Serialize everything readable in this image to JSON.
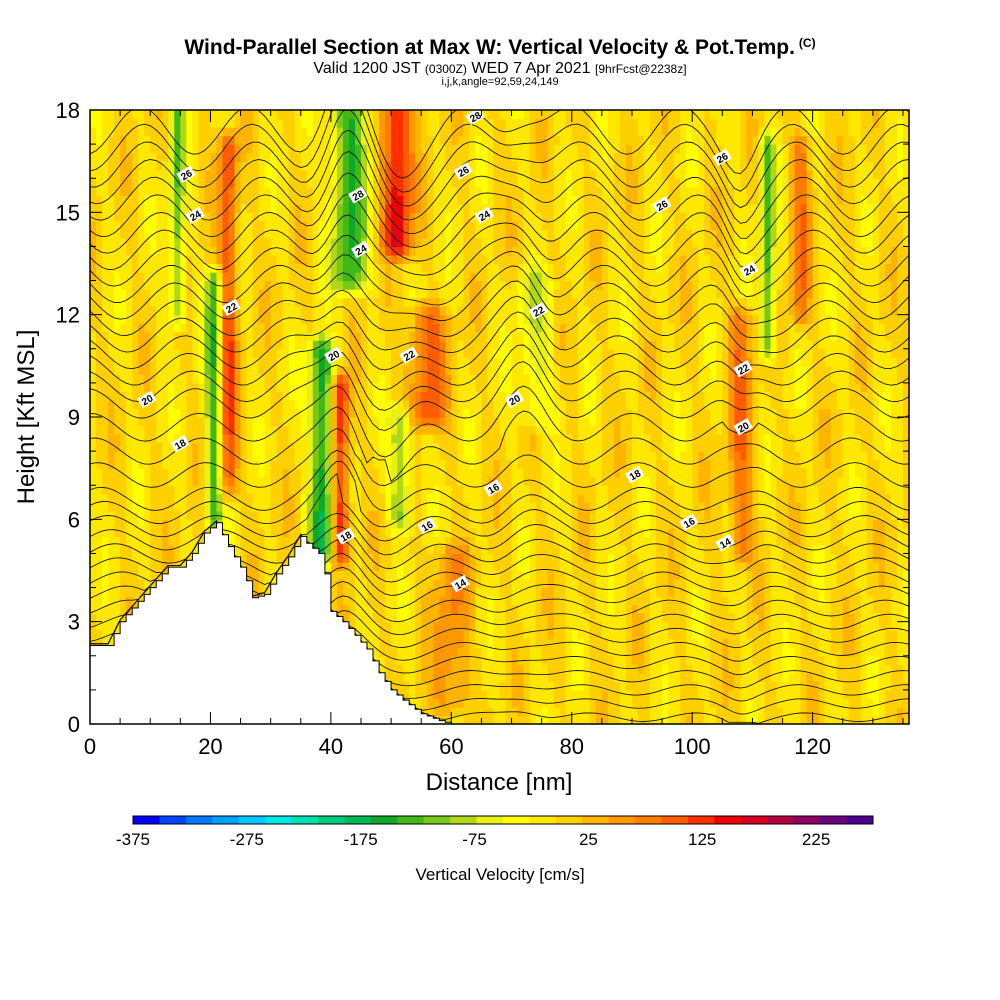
{
  "header": {
    "title": "Wind-Parallel Section at Max W: Vertical Velocity & Pot.Temp.",
    "copyright": "(C)",
    "valid_prefix": "Valid 1200 JST",
    "valid_utc": "(0300Z)",
    "valid_date": "WED 7 Apr 2021",
    "forecast": "[9hrFcst@2238z]",
    "indices": "i,j,k,angle=92,59,24,149"
  },
  "chart_data": {
    "type": "heatmap",
    "xlabel": "Distance [nm]",
    "ylabel": "Height [Kft MSL]",
    "xlim": [
      0,
      136
    ],
    "ylim": [
      0,
      18
    ],
    "xticks": [
      0,
      20,
      40,
      60,
      80,
      100,
      120
    ],
    "yticks": [
      0,
      3,
      6,
      9,
      12,
      15,
      18
    ],
    "colorbar": {
      "label": "Vertical Velocity [cm/s]",
      "tick_labels": [
        "-375",
        "-275",
        "-175",
        "-75",
        "25",
        "125",
        "225"
      ],
      "tick_values": [
        -375,
        -275,
        -175,
        -75,
        25,
        125,
        225
      ],
      "range": [
        -375,
        275
      ],
      "step": 25,
      "colors": [
        "#0000ff",
        "#0044ff",
        "#0077ff",
        "#00a0ff",
        "#00c8ff",
        "#00e8e8",
        "#00e0b0",
        "#00cc80",
        "#00b850",
        "#10a828",
        "#40b818",
        "#78c818",
        "#b0d818",
        "#e8f018",
        "#ffff00",
        "#ffe800",
        "#ffd000",
        "#ffb400",
        "#ff9800",
        "#ff7c00",
        "#ff5c00",
        "#ff3000",
        "#f00000",
        "#d80020",
        "#b40040",
        "#900060",
        "#6a0080",
        "#4a0090"
      ]
    },
    "background_w_cms": 25,
    "w_features": [
      {
        "x": 14.5,
        "y0": 12,
        "y1": 18,
        "w": -120,
        "width": 1.2
      },
      {
        "x": 20.5,
        "y0": 6,
        "y1": 13,
        "w": -140,
        "width": 1.3
      },
      {
        "x": 23,
        "y0": 7,
        "y1": 17,
        "w": 120,
        "width": 1.5
      },
      {
        "x": 38.5,
        "y0": 5,
        "y1": 11,
        "w": -175,
        "width": 2
      },
      {
        "x": 41.5,
        "y0": 5,
        "y1": 10,
        "w": 160,
        "width": 1.5
      },
      {
        "x": 43,
        "y0": 13,
        "y1": 18,
        "w": -150,
        "width": 3
      },
      {
        "x": 51,
        "y0": 14,
        "y1": 18,
        "w": 170,
        "width": 2.5
      },
      {
        "x": 51.5,
        "y0": 6,
        "y1": 9,
        "w": -100,
        "width": 1.8
      },
      {
        "x": 56,
        "y0": 9,
        "y1": 12,
        "w": 110,
        "width": 3
      },
      {
        "x": 74,
        "y0": 9,
        "y1": 13,
        "w": -60,
        "width": 3
      },
      {
        "x": 112.5,
        "y0": 11,
        "y1": 17,
        "w": -140,
        "width": 1.2
      },
      {
        "x": 108,
        "y0": 5,
        "y1": 12,
        "w": 90,
        "width": 2
      },
      {
        "x": 60,
        "y0": 0.5,
        "y1": 5,
        "w": 70,
        "width": 3
      },
      {
        "x": 118,
        "y0": 12,
        "y1": 17,
        "w": 90,
        "width": 1.5
      }
    ],
    "terrain": [
      [
        0,
        2.3
      ],
      [
        3,
        2.3
      ],
      [
        5,
        3
      ],
      [
        7,
        3.4
      ],
      [
        10,
        4
      ],
      [
        13,
        4.6
      ],
      [
        15,
        4.6
      ],
      [
        17,
        5
      ],
      [
        19,
        5.6
      ],
      [
        21,
        5.9
      ],
      [
        23,
        5.2
      ],
      [
        25,
        4.6
      ],
      [
        26,
        4.2
      ],
      [
        27,
        3.7
      ],
      [
        29,
        3.8
      ],
      [
        31,
        4.4
      ],
      [
        33,
        4.9
      ],
      [
        35,
        5.5
      ],
      [
        36,
        5.3
      ],
      [
        38,
        5
      ],
      [
        39,
        4.4
      ],
      [
        40,
        3.3
      ],
      [
        42,
        3
      ],
      [
        44,
        2.6
      ],
      [
        46,
        2.2
      ],
      [
        48,
        1.5
      ],
      [
        50,
        1
      ],
      [
        52,
        0.7
      ],
      [
        55,
        0.3
      ],
      [
        58,
        0.1
      ],
      [
        60,
        0
      ],
      [
        136,
        0
      ]
    ],
    "isentropes": [
      {
        "theta": 14,
        "label_pos": [
          62,
          4.2
        ]
      },
      {
        "theta": 16,
        "label_pos": [
          56,
          5.8
        ]
      },
      {
        "theta": 18,
        "label_pos": [
          43,
          5.6
        ]
      },
      {
        "theta": 20,
        "label_pos": [
          41,
          11
        ]
      },
      {
        "theta": 22,
        "label_pos": [
          24,
          12.2
        ]
      },
      {
        "theta": 24,
        "label_pos": [
          17,
          14.8
        ]
      },
      {
        "theta": 26,
        "label_pos": [
          16,
          16
        ]
      },
      {
        "theta": 28,
        "label_pos": [
          44,
          15.4
        ]
      }
    ],
    "contour_labels": [
      {
        "text": "28",
        "x": 64,
        "y": 17.8
      },
      {
        "text": "26",
        "x": 16,
        "y": 16.1
      },
      {
        "text": "28",
        "x": 44.5,
        "y": 15.5
      },
      {
        "text": "26",
        "x": 62,
        "y": 16.2
      },
      {
        "text": "26",
        "x": 105,
        "y": 16.6
      },
      {
        "text": "26",
        "x": 95,
        "y": 15.2
      },
      {
        "text": "24",
        "x": 17.5,
        "y": 14.9
      },
      {
        "text": "24",
        "x": 45,
        "y": 13.9
      },
      {
        "text": "24",
        "x": 65.5,
        "y": 14.9
      },
      {
        "text": "24",
        "x": 109.5,
        "y": 13.3
      },
      {
        "text": "22",
        "x": 23.5,
        "y": 12.2
      },
      {
        "text": "22",
        "x": 53,
        "y": 10.8
      },
      {
        "text": "22",
        "x": 74.5,
        "y": 12.1
      },
      {
        "text": "22",
        "x": 108.5,
        "y": 10.4
      },
      {
        "text": "20",
        "x": 9.5,
        "y": 9.5
      },
      {
        "text": "20",
        "x": 40.5,
        "y": 10.8
      },
      {
        "text": "20",
        "x": 70.5,
        "y": 9.5
      },
      {
        "text": "20",
        "x": 108.5,
        "y": 8.7
      },
      {
        "text": "18",
        "x": 15,
        "y": 8.2
      },
      {
        "text": "18",
        "x": 90.5,
        "y": 7.3
      },
      {
        "text": "18",
        "x": 42.5,
        "y": 5.5
      },
      {
        "text": "16",
        "x": 67,
        "y": 6.9
      },
      {
        "text": "16",
        "x": 56,
        "y": 5.8
      },
      {
        "text": "16",
        "x": 99.5,
        "y": 5.9
      },
      {
        "text": "14",
        "x": 61.5,
        "y": 4.1
      },
      {
        "text": "14",
        "x": 105.5,
        "y": 5.3
      }
    ]
  }
}
